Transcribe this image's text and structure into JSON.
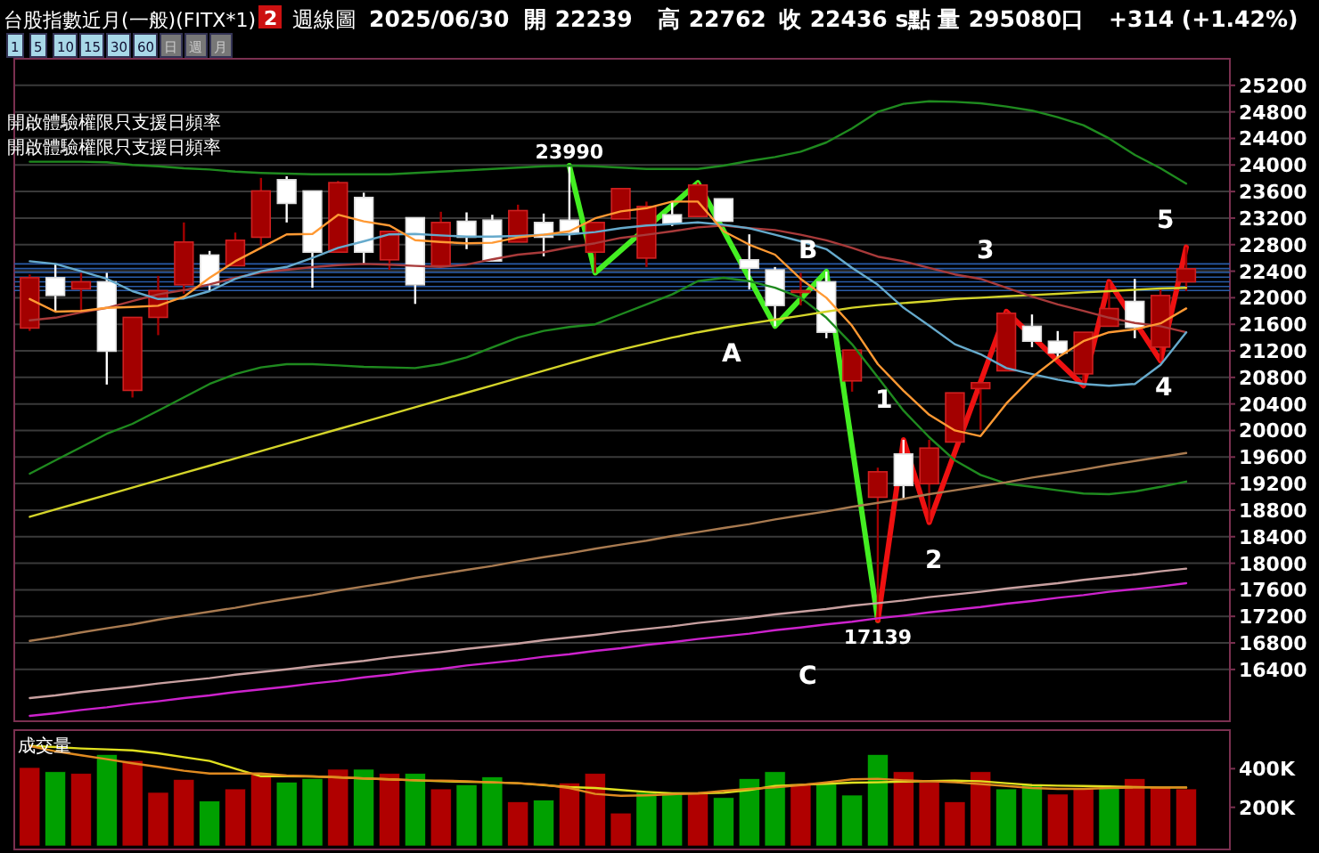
{
  "chart_data": [
    {
      "type": "candlestick",
      "title": "台股指數近月(一般)(FITX*1)",
      "annotations": [
        "2",
        "週線圖",
        "2025/06/30",
        "開 22239",
        "高 22762",
        "收 22436 s點",
        "量 295080口",
        "+314 (+1.42%)",
        "1 5 10 15 30 60 日 週 月",
        "開啟體驗權限只支援日頻率",
        "開啟體驗權限只支援日頻率",
        "A",
        "B",
        "C",
        "1",
        "2",
        "3",
        "4",
        "5"
      ],
      "categories": [
        null,
        null,
        null,
        null,
        null,
        null,
        null,
        null,
        null,
        null,
        null,
        null,
        null,
        null,
        null,
        null,
        null,
        null,
        null,
        null,
        null,
        null,
        null,
        null,
        null,
        null,
        null,
        null,
        null,
        null,
        null,
        null,
        null,
        null,
        null,
        null,
        null,
        null,
        null,
        null,
        null,
        null,
        null,
        null,
        null,
        null
      ],
      "ohlc": [
        [
          21543,
          22350,
          21500,
          22302
        ],
        [
          22302,
          22510,
          21792,
          22034
        ],
        [
          22133,
          22375,
          21792,
          22240
        ],
        [
          22240,
          22375,
          20692,
          21194
        ],
        [
          20604,
          21704,
          20497,
          21704
        ],
        [
          21704,
          22329,
          21436,
          22106
        ],
        [
          22195,
          23134,
          22061,
          22839
        ],
        [
          22643,
          22705,
          22106,
          22195
        ],
        [
          22482,
          22982,
          22482,
          22866
        ],
        [
          22911,
          23805,
          22777,
          23609
        ],
        [
          23778,
          23830,
          23134,
          23421
        ],
        [
          23609,
          23609,
          22150,
          22686
        ],
        [
          22686,
          23760,
          22686,
          23734
        ],
        [
          23511,
          23582,
          22510,
          22686
        ],
        [
          22571,
          23000,
          22420,
          23000
        ],
        [
          23206,
          23206,
          21907,
          22195
        ],
        [
          22482,
          23295,
          22482,
          23134
        ],
        [
          23152,
          23286,
          22732,
          22911
        ],
        [
          23170,
          23250,
          22553,
          22553
        ],
        [
          22839,
          23402,
          22839,
          23313
        ],
        [
          23134,
          23268,
          22624,
          22911
        ],
        [
          23170,
          23990,
          22866,
          22982
        ],
        [
          22686,
          23134,
          22375,
          23134
        ],
        [
          23187,
          23644,
          23187,
          23644
        ],
        [
          22597,
          23448,
          22463,
          23375
        ],
        [
          23250,
          23448,
          23080,
          23116
        ],
        [
          23223,
          23734,
          23223,
          23697
        ],
        [
          23491,
          23491,
          23152,
          23152
        ],
        [
          22571,
          22955,
          22124,
          22445
        ],
        [
          22420,
          22463,
          21570,
          21883
        ],
        [
          22080,
          22375,
          21883,
          22106
        ],
        [
          22240,
          22393,
          21390,
          21480
        ],
        [
          20747,
          21211,
          20585,
          21211
        ],
        [
          18994,
          19440,
          17139,
          19378
        ],
        [
          19646,
          19860,
          18975,
          19171
        ],
        [
          19198,
          19860,
          18618,
          19735
        ],
        [
          19826,
          20567,
          19826,
          20567
        ],
        [
          20631,
          20720,
          20004,
          20720
        ],
        [
          20899,
          21793,
          20899,
          21766
        ],
        [
          21570,
          21748,
          21256,
          21345
        ],
        [
          21345,
          21498,
          21100,
          21167
        ],
        [
          20853,
          21480,
          20674,
          21480
        ],
        [
          21570,
          22240,
          21570,
          21837
        ],
        [
          21945,
          22284,
          21390,
          21552
        ],
        [
          21256,
          22150,
          21050,
          22034
        ],
        [
          22239,
          22762,
          22100,
          22436
        ]
      ],
      "colors": [
        "#a30000",
        "#ffffff",
        "#a30000",
        "#ffffff",
        "#a30000",
        "#a30000",
        "#a30000",
        "#ffffff",
        "#a30000",
        "#a30000",
        "#ffffff",
        "#ffffff",
        "#a30000",
        "#ffffff",
        "#a30000",
        "#ffffff",
        "#a30000",
        "#ffffff",
        "#ffffff",
        "#a30000",
        "#ffffff",
        "#ffffff",
        "#a30000",
        "#a30000",
        "#a30000",
        "#ffffff",
        "#a30000",
        "#ffffff",
        "#ffffff",
        "#ffffff",
        "#a30000",
        "#ffffff",
        "#a30000",
        "#a30000",
        "#ffffff",
        "#a30000",
        "#a30000",
        "#a30000",
        "#a30000",
        "#ffffff",
        "#ffffff",
        "#a30000",
        "#a30000",
        "#ffffff",
        "#a30000",
        "#a30000"
      ],
      "series": [
        {
          "type": "line",
          "color": "#1f8a1f",
          "values": [
            24050,
            24050,
            24050,
            24040,
            24000,
            23980,
            23950,
            23930,
            23900,
            23880,
            23870,
            23860,
            23860,
            23860,
            23860,
            23880,
            23900,
            23920,
            23940,
            23960,
            23980,
            23990,
            23980,
            23960,
            23940,
            23940,
            23940,
            23990,
            24060,
            24120,
            24200,
            24340,
            24550,
            24800,
            24920,
            24960,
            24950,
            24930,
            24880,
            24820,
            24720,
            24600,
            24400,
            24150,
            23950,
            23720
          ]
        },
        {
          "type": "line",
          "color": "#1f8a1f",
          "values": [
            19350,
            19550,
            19750,
            19950,
            20100,
            20300,
            20500,
            20700,
            20850,
            20950,
            21000,
            21000,
            20980,
            20960,
            20950,
            20940,
            21000,
            21100,
            21250,
            21400,
            21500,
            21560,
            21600,
            21750,
            21900,
            22050,
            22250,
            22300,
            22250,
            22150,
            22000,
            21700,
            21300,
            20800,
            20300,
            19900,
            19550,
            19330,
            19200,
            19150,
            19100,
            19050,
            19040,
            19080,
            19150,
            19230
          ]
        },
        {
          "type": "line",
          "color": "#d4d42a",
          "values": [
            18700,
            18810,
            18920,
            19030,
            19140,
            19250,
            19360,
            19470,
            19580,
            19690,
            19800,
            19910,
            20020,
            20130,
            20240,
            20350,
            20460,
            20570,
            20680,
            20790,
            20900,
            21010,
            21120,
            21220,
            21310,
            21400,
            21480,
            21550,
            21610,
            21670,
            21730,
            21790,
            21850,
            21890,
            21920,
            21950,
            21980,
            22000,
            22020,
            22040,
            22060,
            22080,
            22100,
            22120,
            22140,
            22150
          ]
        },
        {
          "type": "line",
          "color": "#a87a50",
          "values": [
            16830,
            16890,
            16960,
            17020,
            17080,
            17150,
            17210,
            17270,
            17330,
            17400,
            17460,
            17520,
            17590,
            17650,
            17710,
            17780,
            17840,
            17900,
            17960,
            18030,
            18090,
            18150,
            18220,
            18280,
            18340,
            18410,
            18470,
            18530,
            18590,
            18660,
            18720,
            18780,
            18850,
            18910,
            18970,
            19040,
            19100,
            19160,
            19220,
            19290,
            19350,
            19410,
            19480,
            19540,
            19600,
            19660
          ]
        },
        {
          "type": "line",
          "color": "#c8a0a0",
          "values": [
            15970,
            16010,
            16060,
            16100,
            16140,
            16190,
            16230,
            16270,
            16320,
            16360,
            16400,
            16450,
            16490,
            16530,
            16580,
            16620,
            16660,
            16710,
            16750,
            16790,
            16840,
            16880,
            16920,
            16970,
            17010,
            17050,
            17100,
            17140,
            17180,
            17230,
            17270,
            17310,
            17360,
            17400,
            17440,
            17490,
            17530,
            17570,
            17620,
            17660,
            17700,
            17750,
            17790,
            17830,
            17880,
            17920
          ]
        },
        {
          "type": "line",
          "color": "#cc22cc",
          "values": [
            15700,
            15740,
            15790,
            15830,
            15880,
            15920,
            15970,
            16010,
            16060,
            16100,
            16140,
            16190,
            16230,
            16280,
            16320,
            16370,
            16410,
            16460,
            16500,
            16540,
            16590,
            16630,
            16680,
            16720,
            16770,
            16810,
            16860,
            16900,
            16940,
            16990,
            17030,
            17080,
            17120,
            17170,
            17210,
            17260,
            17300,
            17340,
            17390,
            17430,
            17480,
            17520,
            17570,
            17610,
            17650,
            17700
          ]
        },
        {
          "type": "line",
          "color": "#a83a3a",
          "values": [
            21658,
            21700,
            21780,
            21846,
            21950,
            22050,
            22115,
            22200,
            22300,
            22380,
            22420,
            22460,
            22490,
            22510,
            22500,
            22480,
            22463,
            22500,
            22580,
            22650,
            22686,
            22760,
            22820,
            22900,
            22950,
            23000,
            23060,
            23090,
            23050,
            23018,
            22950,
            22866,
            22750,
            22620,
            22550,
            22450,
            22350,
            22284,
            22150,
            22015,
            21900,
            21800,
            21700,
            21620,
            21570,
            21480
          ]
        },
        {
          "type": "line",
          "color": "#66aacc",
          "values": [
            22550,
            22510,
            22400,
            22284,
            22100,
            21980,
            21990,
            22100,
            22284,
            22400,
            22463,
            22600,
            22750,
            22850,
            22955,
            22960,
            22940,
            22920,
            22920,
            22930,
            22950,
            22955,
            22990,
            23050,
            23090,
            23110,
            23134,
            23100,
            23045,
            22950,
            22850,
            22732,
            22450,
            22195,
            21850,
            21578,
            21300,
            21150,
            20940,
            20850,
            20765,
            20700,
            20674,
            20700,
            20987,
            21480
          ]
        },
        {
          "type": "line",
          "color": "#ff9933",
          "values": [
            21980,
            21790,
            21800,
            21846,
            21860,
            21880,
            22015,
            22300,
            22550,
            22750,
            22955,
            22960,
            23250,
            23150,
            23090,
            22865,
            22840,
            22820,
            22830,
            22910,
            22950,
            23000,
            23195,
            23300,
            23350,
            23448,
            23448,
            23000,
            22800,
            22650,
            22284,
            22000,
            21578,
            21000,
            20600,
            20236,
            20000,
            19914,
            20406,
            20800,
            21100,
            21345,
            21480,
            21525,
            21613,
            21838
          ]
        },
        {
          "type": "line",
          "color": "#44ee22",
          "values": [
            null,
            null,
            null,
            null,
            null,
            null,
            null,
            null,
            null,
            null,
            null,
            null,
            null,
            null,
            null,
            null,
            null,
            null,
            null,
            null,
            null,
            23990,
            22375,
            null,
            null,
            null,
            23734,
            null,
            null,
            21570,
            null,
            22393,
            null,
            17139,
            null,
            null,
            null,
            null,
            null,
            null,
            null,
            null,
            null,
            null,
            null,
            null
          ],
          "value_labels": [
            null,
            null,
            null,
            null,
            null,
            null,
            null,
            null,
            null,
            null,
            null,
            null,
            null,
            null,
            null,
            null,
            null,
            null,
            null,
            null,
            null,
            "23990",
            null,
            null,
            null,
            null,
            null,
            null,
            null,
            null,
            null,
            null,
            null,
            "17139",
            null,
            null,
            null,
            null,
            null,
            null,
            null,
            null,
            null,
            null,
            null,
            null
          ]
        },
        {
          "type": "line",
          "color": "#ee1111",
          "values": [
            null,
            null,
            null,
            null,
            null,
            null,
            null,
            null,
            null,
            null,
            null,
            null,
            null,
            null,
            null,
            null,
            null,
            null,
            null,
            null,
            null,
            null,
            null,
            null,
            null,
            null,
            null,
            null,
            null,
            null,
            null,
            null,
            null,
            17139,
            19860,
            18618,
            null,
            null,
            21793,
            null,
            null,
            20674,
            22240,
            null,
            21050,
            22762
          ]
        }
      ],
      "ylim": [
        15620,
        25600
      ],
      "yticks": [
        16400,
        16800,
        17200,
        17600,
        18000,
        18400,
        18800,
        19200,
        19600,
        20000,
        20400,
        20800,
        21200,
        21600,
        22000,
        22400,
        22800,
        23200,
        23600,
        24000,
        24400,
        24800,
        25200
      ],
      "grid": "y",
      "tick_labels": "y",
      "ref_lines": [
        {
          "axis": "y",
          "value": 22510,
          "color": "#2a5caa"
        },
        {
          "axis": "y",
          "value": 22440,
          "color": "#2a5caa"
        },
        {
          "axis": "y",
          "value": 22380,
          "color": "#2a5caa"
        },
        {
          "axis": "y",
          "value": 22310,
          "color": "#2a5caa"
        },
        {
          "axis": "y",
          "value": 22240,
          "color": "#2a5caa"
        },
        {
          "axis": "y",
          "value": 22170,
          "color": "#2a5caa"
        },
        {
          "axis": "y",
          "value": 22110,
          "color": "#2a5caa"
        }
      ]
    },
    {
      "type": "bar",
      "title": "成交量",
      "categories": [
        null,
        null,
        null,
        null,
        null,
        null,
        null,
        null,
        null,
        null,
        null,
        null,
        null,
        null,
        null,
        null,
        null,
        null,
        null,
        null,
        null,
        null,
        null,
        null,
        null,
        null,
        null,
        null,
        null,
        null,
        null,
        null,
        null,
        null,
        null,
        null,
        null,
        null,
        null,
        null,
        null,
        null,
        null,
        null,
        null,
        null
      ],
      "series": [
        {
          "type": "bar",
          "values": [
            406000,
            384000,
            375000,
            473000,
            442000,
            277000,
            344000,
            232000,
            295000,
            375000,
            330000,
            348000,
            397000,
            397000,
            375000,
            375000,
            295000,
            317000,
            357000,
            228000,
            237000,
            326000,
            375000,
            170000,
            277000,
            272000,
            277000,
            250000,
            348000,
            384000,
            321000,
            326000,
            263000,
            473000,
            384000,
            330000,
            228000,
            384000,
            295000,
            317000,
            268000,
            295000,
            304000,
            348000,
            304000,
            295080
          ],
          "colors": [
            "#b00000",
            "#00a000",
            "#b00000",
            "#00a000",
            "#b00000",
            "#b00000",
            "#b00000",
            "#00a000",
            "#b00000",
            "#b00000",
            "#00a000",
            "#00a000",
            "#b00000",
            "#00a000",
            "#b00000",
            "#00a000",
            "#b00000",
            "#00a000",
            "#00a000",
            "#b00000",
            "#00a000",
            "#b00000",
            "#b00000",
            "#b00000",
            "#00a000",
            "#00a000",
            "#b00000",
            "#00a000",
            "#00a000",
            "#00a000",
            "#b00000",
            "#00a000",
            "#00a000",
            "#00a000",
            "#b00000",
            "#b00000",
            "#b00000",
            "#b00000",
            "#00a000",
            "#00a000",
            "#b00000",
            "#b00000",
            "#00a000",
            "#b00000",
            "#b00000",
            "#b00000"
          ]
        },
        {
          "type": "line",
          "color": "#e0e020",
          "values": [
            518000,
            512000,
            505000,
            500000,
            495000,
            480000,
            460000,
            440000,
            400000,
            361000,
            361000,
            360000,
            355000,
            350000,
            345000,
            340000,
            335000,
            332000,
            330000,
            325000,
            315000,
            305000,
            300000,
            290000,
            280000,
            272000,
            272000,
            275000,
            290000,
            310000,
            317000,
            322000,
            328000,
            330000,
            333000,
            336000,
            339000,
            335000,
            325000,
            315000,
            312000,
            310000,
            308000,
            305000,
            303000,
            303000
          ]
        },
        {
          "type": "line",
          "color": "#e08a20",
          "values": [
            518000,
            490000,
            470000,
            450000,
            428000,
            410000,
            390000,
            375000,
            375000,
            375000,
            365000,
            360000,
            355000,
            350000,
            345000,
            340000,
            339000,
            335000,
            330000,
            325000,
            317000,
            300000,
            270000,
            259000,
            262000,
            268000,
            272000,
            285000,
            295000,
            303000,
            315000,
            330000,
            345000,
            348000,
            340000,
            335000,
            330000,
            320000,
            310000,
            300000,
            295000,
            295000,
            300000,
            303000,
            303000,
            303000
          ]
        }
      ],
      "ylim": [
        0,
        600000
      ],
      "yticks": [
        {
          "value": 200000,
          "label": "200K"
        },
        {
          "value": 400000,
          "label": "400K"
        }
      ],
      "tick_labels": "y"
    }
  ]
}
